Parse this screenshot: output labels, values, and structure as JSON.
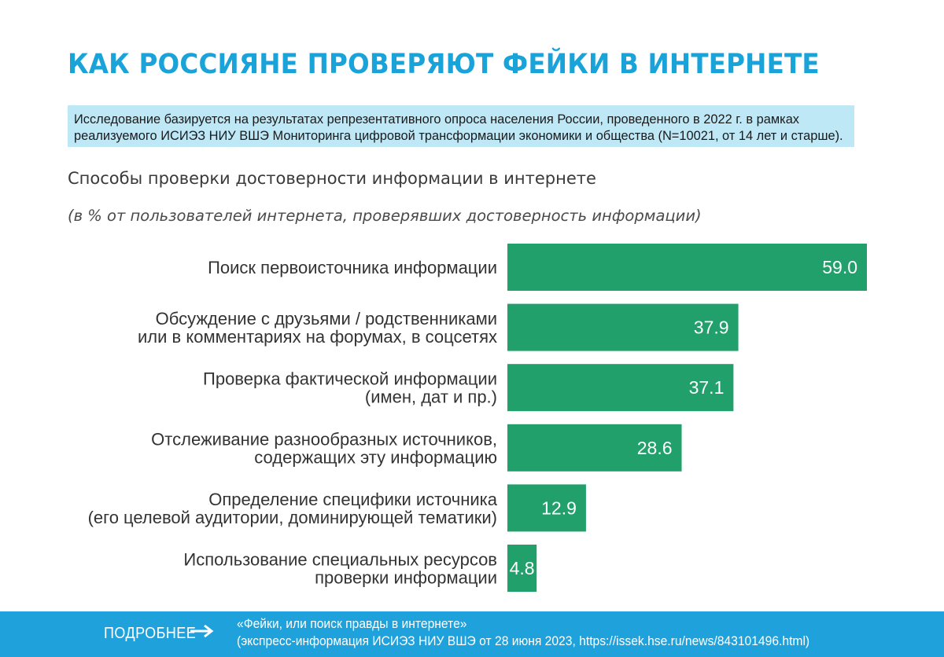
{
  "header": {
    "title": "КАК РОССИЯНЕ ПРОВЕРЯЮТ ФЕЙКИ В ИНТЕРНЕТЕ",
    "note_line1": "Исследование базируется на результатах репрезентативного опроса населения России, проведенного в 2022 г. в рамках",
    "note_line2": "реализуемого ИСИЭЗ НИУ ВШЭ Мониторинга цифровой трансформации экономики и общества (N=10021, от 14 лет и старше)."
  },
  "chart_data": {
    "type": "bar",
    "orientation": "horizontal",
    "title": "Способы проверки достоверности информации в интернете",
    "subtitle": "(в % от пользователей интернета, проверявших достоверность информации)",
    "categories": [
      [
        "Поиск первоисточника информации"
      ],
      [
        "Обсуждение с друзьями / родственниками",
        "или в комментариях на форумах, в соцсетях"
      ],
      [
        "Проверка фактической информации",
        "(имен, дат и пр.)"
      ],
      [
        "Отслеживание разнообразных источников,",
        "содержащих эту информацию"
      ],
      [
        "Определение специфики источника",
        "(его целевой аудитории, доминирующей тематики)"
      ],
      [
        "Использование специальных ресурсов",
        "проверки информации"
      ]
    ],
    "values": [
      59.0,
      37.9,
      37.1,
      28.6,
      12.9,
      4.8
    ],
    "value_labels": [
      "59.0",
      "37.9",
      "37.1",
      "28.6",
      "12.9",
      "4.8"
    ],
    "bar_color": "#22a06b",
    "grid": false,
    "legend": "none"
  },
  "footer": {
    "more_label": "ПОДРОБНЕЕ",
    "ref_line1": "«Фейки, или поиск правды в интернете»",
    "ref_line2": "(экспресс-информация ИСИЭЗ НИУ ВШЭ от 28 июня 2023,  https://issek.hse.ru/news/843101496.html)",
    "arrow_icon": "right-arrow-icon"
  }
}
